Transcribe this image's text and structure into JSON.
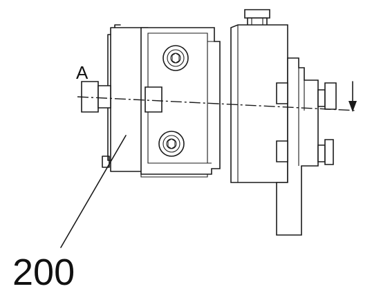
{
  "labels": {
    "section_marker": "A",
    "part_number": "200"
  },
  "icons": {
    "screw": "hex-socket-screw-icon",
    "arrow": "section-arrow-icon"
  },
  "colors": {
    "line": "#1a1a1a",
    "background": "#ffffff"
  }
}
